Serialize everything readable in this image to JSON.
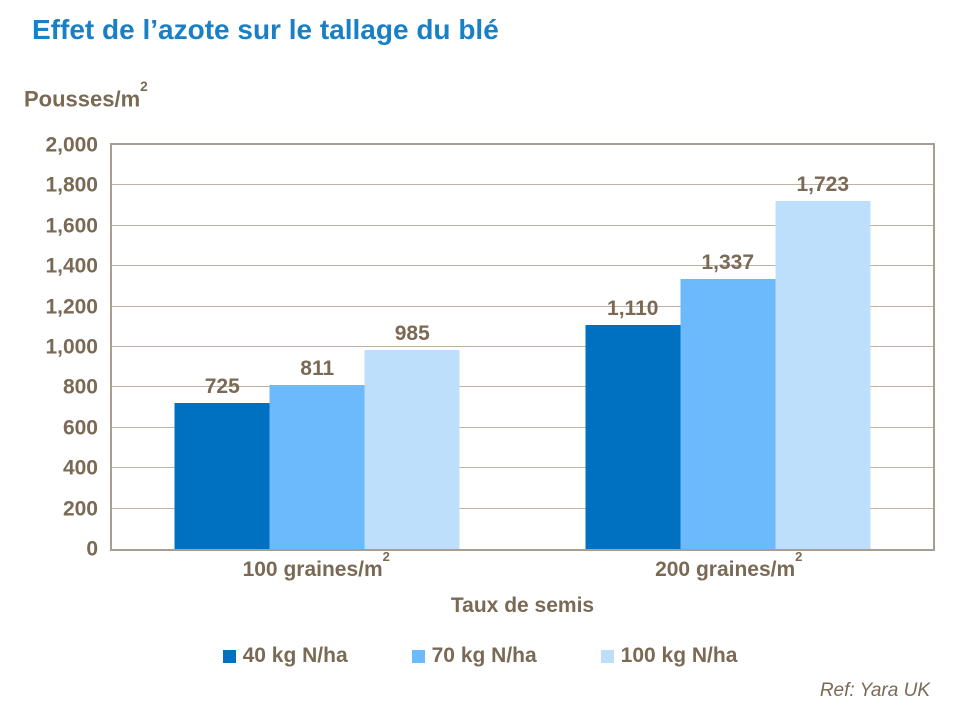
{
  "page": {
    "title": "Effet de l’azote sur le tallage du blé",
    "footer_ref": "Ref: Yara UK"
  },
  "colors": {
    "title_blue": "#1A80C6",
    "axis_text_brown": "#7A6A55",
    "plot_border": "#A89E90",
    "gridline": "#BEB3A2",
    "series_dark_blue": "#0070C0",
    "series_mid_blue": "#6CBAFB",
    "series_light_blue": "#BEDFFB"
  },
  "chart_data": {
    "type": "bar",
    "title": "Effet de l’azote sur le tallage du blé",
    "ylabel": {
      "base": "Pousses/m",
      "sup": "2"
    },
    "xlabel": "Taux de semis",
    "categories": [
      {
        "base": "100 graines/m",
        "sup": "2"
      },
      {
        "base": "200 graines/m",
        "sup": "2"
      }
    ],
    "series": [
      {
        "name": "40 kg N/ha",
        "color": "#0070C0",
        "values": [
          725,
          1110
        ],
        "labels": [
          "725",
          "1,110"
        ]
      },
      {
        "name": "70 kg N/ha",
        "color": "#6CBAFB",
        "values": [
          811,
          1337
        ],
        "labels": [
          "811",
          "1,337"
        ]
      },
      {
        "name": "100 kg N/ha",
        "color": "#BEDFFB",
        "values": [
          985,
          1723
        ],
        "labels": [
          "985",
          "1,723"
        ]
      }
    ],
    "ylim": [
      0,
      2000
    ],
    "ytick_step": 200,
    "ytick_labels": [
      "0",
      "200",
      "400",
      "600",
      "800",
      "1,000",
      "1,200",
      "1,400",
      "1,600",
      "1,800",
      "2,000"
    ],
    "grid": true,
    "legend_position": "bottom",
    "group_centers_pct": [
      25,
      75
    ]
  }
}
